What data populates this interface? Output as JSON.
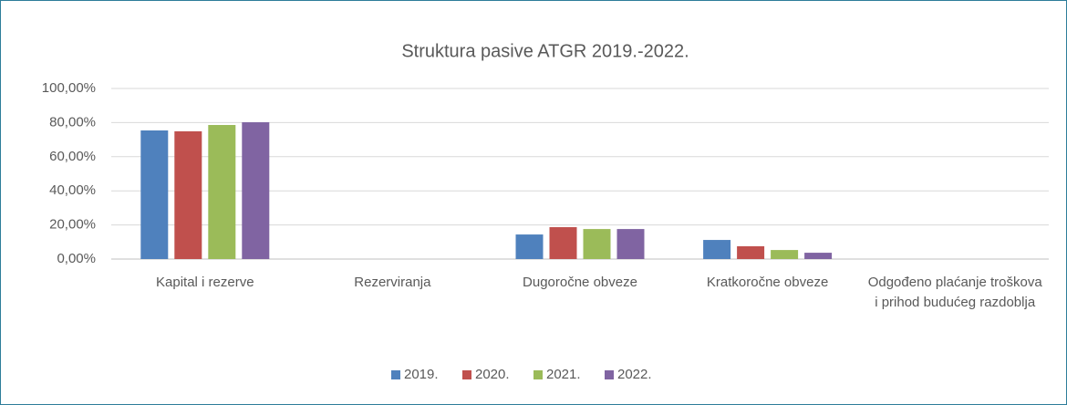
{
  "chart_data": {
    "type": "bar",
    "title": "Struktura pasive ATGR 2019.-2022.",
    "categories": [
      "Kapital i rezerve",
      "Rezerviranja",
      "Dugoročne obveze",
      "Kratkoročne obveze",
      "Odgođeno plaćanje troškova i prihod budućeg razdoblja"
    ],
    "series": [
      {
        "name": "2019.",
        "color": "#4f81bd",
        "values": [
          75.4,
          0,
          14.4,
          11.2,
          0
        ]
      },
      {
        "name": "2020.",
        "color": "#c0504d",
        "values": [
          74.9,
          0,
          18.7,
          7.5,
          0
        ]
      },
      {
        "name": "2021.",
        "color": "#9bbb59",
        "values": [
          78.6,
          0,
          17.6,
          5.3,
          0
        ]
      },
      {
        "name": "2022.",
        "color": "#8064a2",
        "values": [
          80.2,
          0,
          17.6,
          3.7,
          0
        ]
      }
    ],
    "ylim": [
      0,
      100
    ],
    "yticks": [
      {
        "value": 0,
        "label": "0,00%"
      },
      {
        "value": 20,
        "label": "20,00%"
      },
      {
        "value": 40,
        "label": "40,00%"
      },
      {
        "value": 60,
        "label": "60,00%"
      },
      {
        "value": 80,
        "label": "80,00%"
      },
      {
        "value": 100,
        "label": "100,00%"
      }
    ],
    "grid": true,
    "legend": "bottom"
  }
}
